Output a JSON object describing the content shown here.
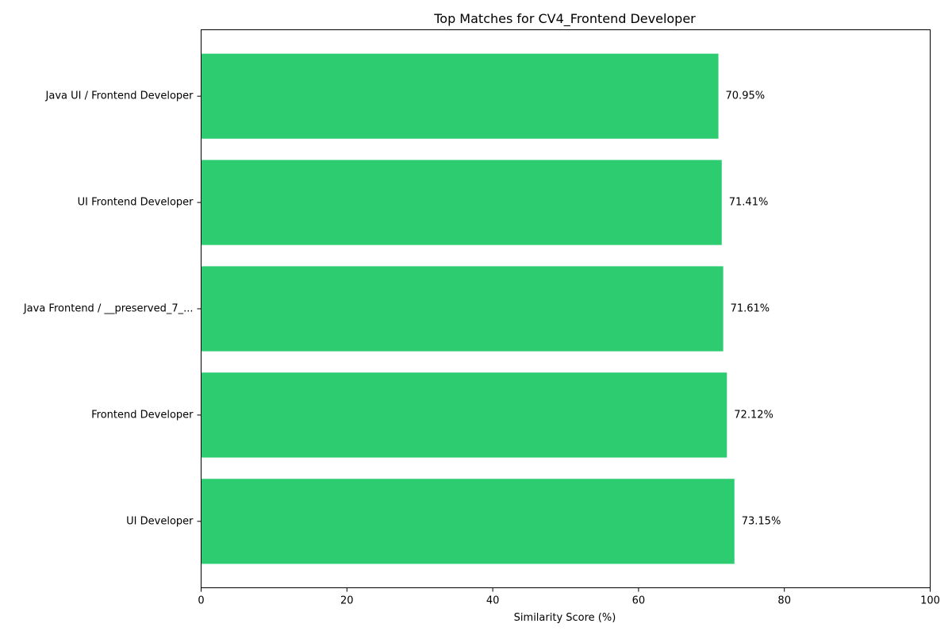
{
  "chart_data": {
    "type": "bar",
    "orientation": "horizontal",
    "title": "Top Matches for CV4_Frontend Developer",
    "xlabel": "Similarity Score (%)",
    "ylabel": "",
    "xlim": [
      0,
      100
    ],
    "xticks": [
      "0",
      "20",
      "40",
      "60",
      "80",
      "100"
    ],
    "bar_color": "#2ecc71",
    "categories": [
      "UI Developer",
      "Frontend Developer",
      "Java Frontend / __preserved_7_...",
      "UI Frontend Developer",
      "Java UI / Frontend Developer"
    ],
    "values": [
      73.15,
      72.12,
      71.61,
      71.41,
      70.95
    ],
    "data_labels": [
      "73.15%",
      "72.12%",
      "71.61%",
      "71.41%",
      "70.95%"
    ],
    "grid": false,
    "legend": "none"
  }
}
